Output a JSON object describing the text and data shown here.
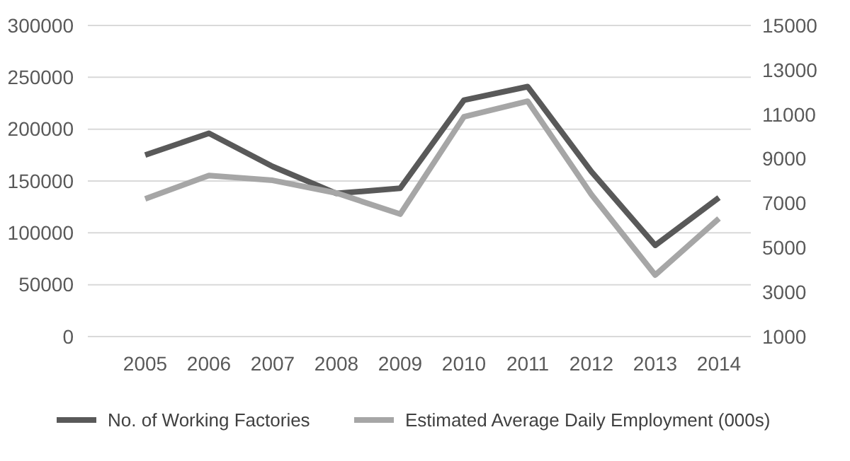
{
  "chart_data": {
    "type": "line",
    "categories": [
      "2005",
      "2006",
      "2007",
      "2008",
      "2009",
      "2010",
      "2011",
      "2012",
      "2013",
      "2014"
    ],
    "series": [
      {
        "name": "No. of Working Factories",
        "color": "#595959",
        "values": [
          175000,
          196000,
          164000,
          138000,
          143000,
          228000,
          241000,
          159000,
          88000,
          134000
        ]
      },
      {
        "name": "Estimated Average Daily Employment (000s)",
        "color": "#a6a6a6",
        "axis": "y2",
        "values": [
          7200,
          8250,
          8030,
          7460,
          6510,
          10890,
          11590,
          7390,
          3770,
          6310
        ]
      }
    ],
    "ylim": [
      0,
      300000
    ],
    "yticks": [
      0,
      50000,
      100000,
      150000,
      200000,
      250000,
      300000
    ],
    "y2lim": [
      1000,
      15000
    ],
    "y2ticks": [
      1000,
      3000,
      5000,
      7000,
      9000,
      11000,
      13000,
      15000
    ],
    "grid": "y",
    "legend": "bottom",
    "marker": "none",
    "line_style": "solid"
  }
}
